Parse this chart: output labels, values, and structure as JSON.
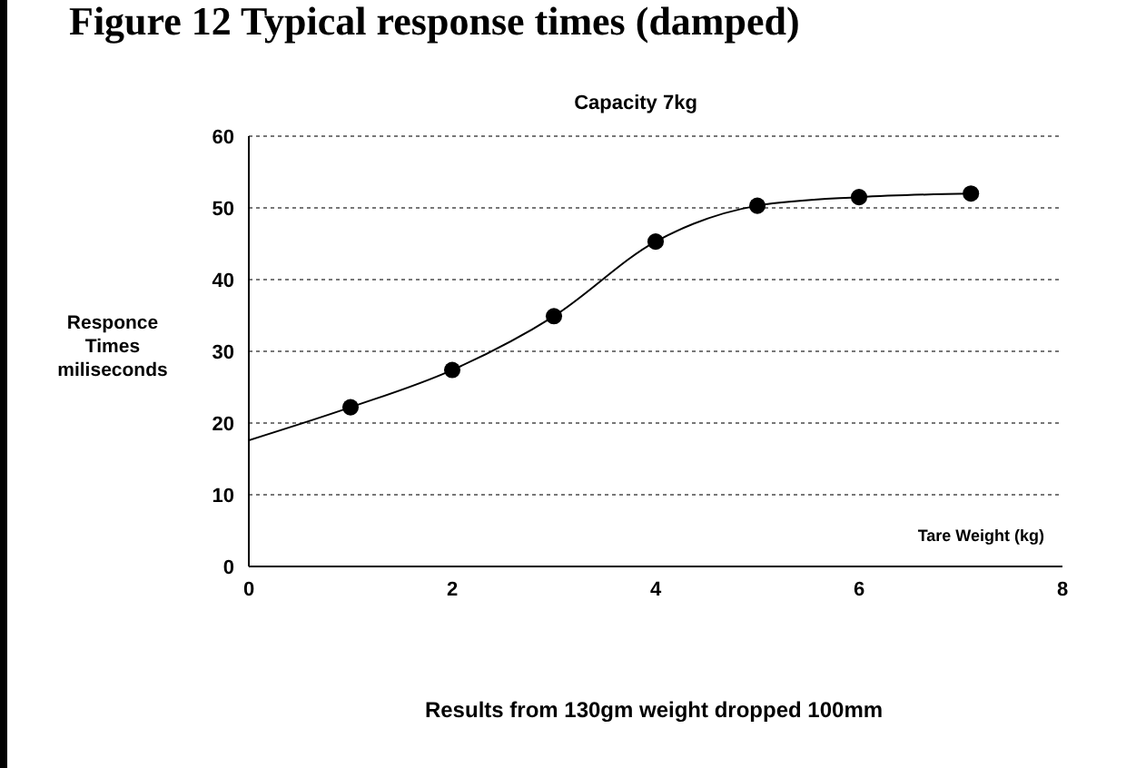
{
  "chart_data": {
    "type": "line",
    "title": "Figure 12 Typical response times (damped)",
    "subtitle": "Capacity 7kg",
    "xlabel": "Tare Weight (kg)",
    "ylabel": "Responce Times miliseconds",
    "annotations": [
      "Results from 130gm weight dropped 100mm"
    ],
    "series": [
      {
        "color": "#000000",
        "marker": "none",
        "x": [
          0,
          1,
          2,
          3,
          4,
          5,
          6,
          7.1
        ],
        "values": [
          17.6,
          22.2,
          27.4,
          34.9,
          45.3,
          50.3,
          51.5,
          52.0
        ]
      },
      {
        "type": "scatter",
        "color": "#000000",
        "marker": "circle",
        "x": [
          1,
          2,
          3,
          4,
          5,
          6,
          7.1
        ],
        "values": [
          22.2,
          27.4,
          34.9,
          45.3,
          50.3,
          51.5,
          52.0
        ]
      }
    ],
    "xlim": [
      0,
      8
    ],
    "xticks": [
      0,
      2,
      4,
      6,
      8
    ],
    "ylim": [
      0,
      60
    ],
    "yticks": [
      0,
      10,
      20,
      30,
      40,
      50,
      60
    ],
    "grid": "y"
  }
}
